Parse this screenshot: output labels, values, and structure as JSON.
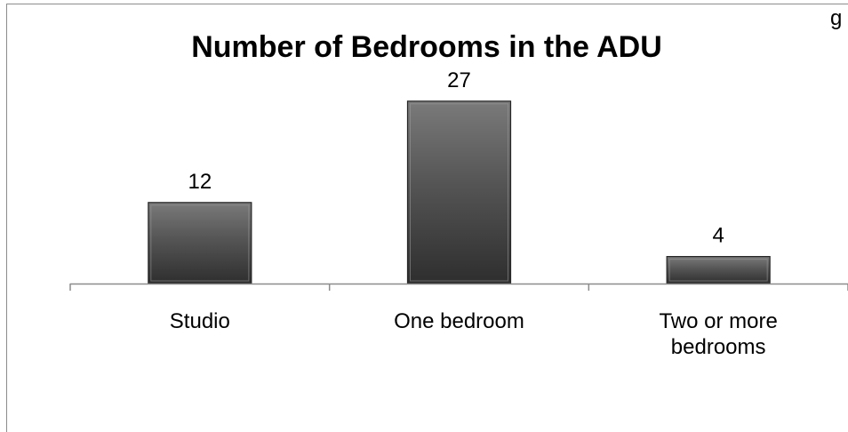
{
  "corner_text": "g",
  "chart_data": {
    "type": "bar",
    "title": "Number of Bedrooms in the ADU",
    "categories": [
      "Studio",
      "One bedroom",
      "Two or more bedrooms"
    ],
    "category_lines": [
      [
        "Studio"
      ],
      [
        "One bedroom"
      ],
      [
        "Two or more",
        "bedrooms"
      ]
    ],
    "values": [
      12,
      27,
      4
    ],
    "data_labels": [
      "12",
      "27",
      "4"
    ],
    "xlabel": "",
    "ylabel": "",
    "ylim": [
      0,
      30
    ],
    "grid": false,
    "legend": "none",
    "colors": {
      "bar_top": "#7a7a7a",
      "bar_mid": "#555555",
      "bar_bottom": "#2e2e2e",
      "bar_edge": "#262626",
      "axis": "#8c8c8c",
      "frame": "#8c8c8c"
    }
  }
}
